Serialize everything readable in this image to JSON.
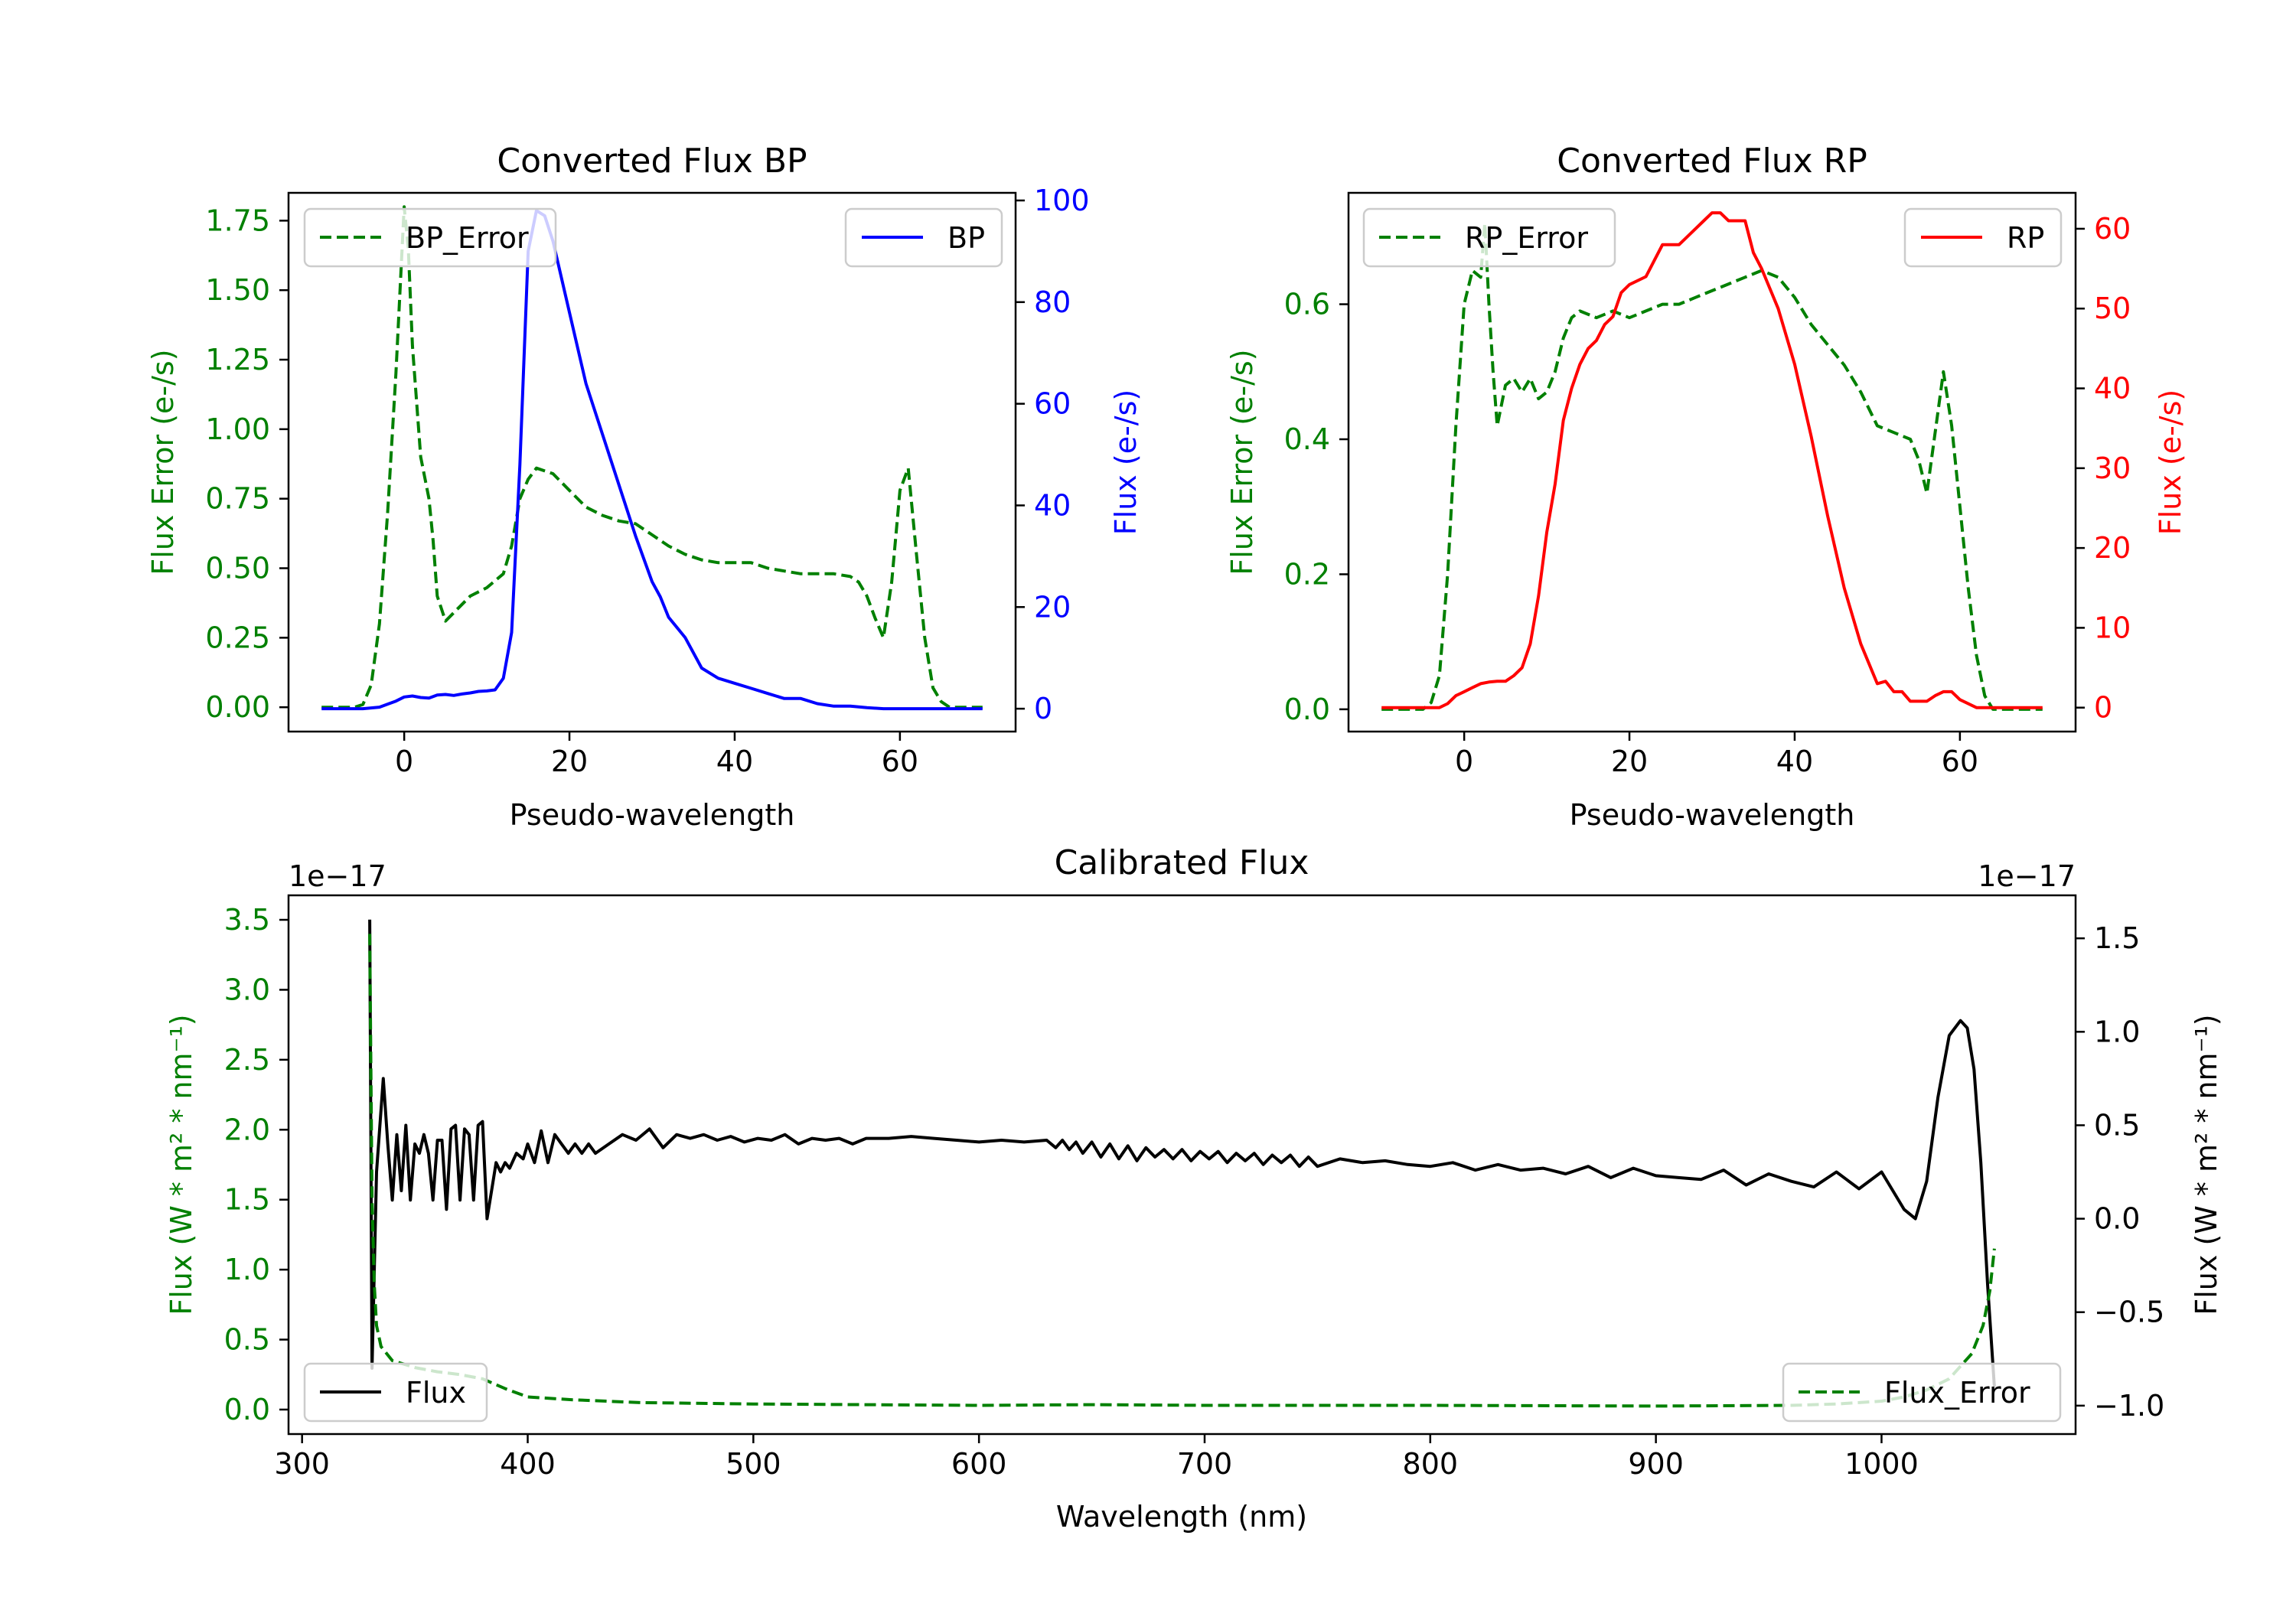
{
  "colors": {
    "error": "#008000",
    "bp": "#0000ff",
    "rp": "#ff0000",
    "flux": "#000000",
    "axis": "#000000",
    "background": "#ffffff"
  },
  "chart_data": [
    {
      "id": "bp",
      "type": "line",
      "title": "Converted Flux BP",
      "xlabel": "Pseudo-wavelength",
      "ylabel_left": "Flux Error (e-/s)",
      "ylabel_right": "Flux (e-/s)",
      "xlim": [
        -14,
        74
      ],
      "ylim_left": [
        -0.0875,
        1.85
      ],
      "ylim_right": [
        -4.5,
        101.5
      ],
      "xticks": [
        0,
        20,
        40,
        60
      ],
      "xtick_labels": [
        "0",
        "20",
        "40",
        "60"
      ],
      "yticks_left": [
        0,
        0.25,
        0.5,
        0.75,
        1.0,
        1.25,
        1.5,
        1.75
      ],
      "ytick_labels_left": [
        "0.00",
        "0.25",
        "0.50",
        "0.75",
        "1.00",
        "1.25",
        "1.50",
        "1.75"
      ],
      "yticks_right": [
        0,
        20,
        40,
        60,
        80,
        100
      ],
      "ytick_labels_right": [
        "0",
        "20",
        "40",
        "60",
        "80",
        "100"
      ],
      "legend_left": {
        "label": "BP_Error",
        "position": "upper-left"
      },
      "legend_right": {
        "label": "BP",
        "position": "upper-right"
      },
      "series": [
        {
          "name": "BP_Error",
          "axis": "left",
          "style": "dashed",
          "color_key": "error",
          "x": [
            -10,
            -6,
            -5,
            -4,
            -3,
            -2,
            -1,
            0,
            0.5,
            1,
            2,
            3,
            3.5,
            4,
            5,
            6,
            8,
            10,
            12,
            13,
            14,
            15,
            16,
            18,
            20,
            22,
            24,
            26,
            28,
            30,
            32,
            34,
            36,
            38,
            40,
            42,
            44,
            46,
            48,
            50,
            52,
            54,
            55,
            56,
            57,
            58,
            59,
            60,
            61,
            62,
            63,
            64,
            65,
            66,
            70
          ],
          "y": [
            0,
            0,
            0.01,
            0.08,
            0.3,
            0.7,
            1.2,
            1.8,
            1.65,
            1.3,
            0.9,
            0.75,
            0.6,
            0.4,
            0.31,
            0.34,
            0.4,
            0.43,
            0.48,
            0.58,
            0.75,
            0.82,
            0.86,
            0.84,
            0.78,
            0.72,
            0.69,
            0.67,
            0.66,
            0.62,
            0.58,
            0.55,
            0.53,
            0.52,
            0.52,
            0.52,
            0.5,
            0.49,
            0.48,
            0.48,
            0.48,
            0.47,
            0.45,
            0.4,
            0.32,
            0.25,
            0.45,
            0.78,
            0.86,
            0.55,
            0.25,
            0.07,
            0.02,
            0,
            0
          ]
        },
        {
          "name": "BP",
          "axis": "right",
          "style": "solid",
          "color_key": "bp",
          "x": [
            -10,
            -5,
            -3,
            -1,
            0,
            1,
            2,
            3,
            4,
            5,
            6,
            7,
            8,
            9,
            10,
            11,
            12,
            13,
            14,
            15,
            16,
            17,
            18,
            20,
            22,
            24,
            26,
            28,
            30,
            31,
            32,
            34,
            36,
            38,
            40,
            42,
            44,
            46,
            48,
            50,
            52,
            54,
            56,
            58,
            60,
            62,
            64,
            66,
            70
          ],
          "y": [
            0,
            0,
            0.3,
            1.5,
            2.3,
            2.5,
            2.2,
            2.1,
            2.7,
            2.8,
            2.6,
            2.9,
            3.1,
            3.4,
            3.5,
            3.7,
            6,
            15,
            48,
            90,
            98,
            97,
            92,
            78,
            64,
            54,
            44,
            34,
            25,
            22,
            18,
            14,
            8,
            6,
            5,
            4,
            3,
            2,
            2,
            1,
            0.5,
            0.5,
            0.2,
            0,
            0,
            0,
            0,
            0,
            0
          ]
        }
      ]
    },
    {
      "id": "rp",
      "type": "line",
      "title": "Converted Flux RP",
      "xlabel": "Pseudo-wavelength",
      "ylabel_left": "Flux Error (e-/s)",
      "ylabel_right": "Flux (e-/s)",
      "xlim": [
        -14,
        74
      ],
      "ylim_left": [
        -0.033,
        0.765
      ],
      "ylim_right": [
        -3.0,
        64.5
      ],
      "xticks": [
        0,
        20,
        40,
        60
      ],
      "xtick_labels": [
        "0",
        "20",
        "40",
        "60"
      ],
      "yticks_left": [
        0,
        0.2,
        0.4,
        0.6
      ],
      "ytick_labels_left": [
        "0.0",
        "0.2",
        "0.4",
        "0.6"
      ],
      "yticks_right": [
        0,
        10,
        20,
        30,
        40,
        50,
        60
      ],
      "ytick_labels_right": [
        "0",
        "10",
        "20",
        "30",
        "40",
        "50",
        "60"
      ],
      "legend_left": {
        "label": "RP_Error",
        "position": "upper-left"
      },
      "legend_right": {
        "label": "RP",
        "position": "upper-right"
      },
      "series": [
        {
          "name": "RP_Error",
          "axis": "left",
          "style": "dashed",
          "color_key": "error",
          "x": [
            -10,
            -5,
            -4,
            -3,
            -2,
            -1,
            0,
            1,
            2,
            2.5,
            3,
            3.5,
            4,
            5,
            6,
            7,
            8,
            9,
            10,
            11,
            12,
            13,
            14,
            16,
            18,
            20,
            22,
            24,
            26,
            28,
            30,
            32,
            34,
            36,
            38,
            40,
            42,
            44,
            46,
            48,
            50,
            52,
            54,
            55,
            56,
            57,
            58,
            59,
            60,
            61,
            62,
            63,
            64,
            65,
            70
          ],
          "y": [
            0,
            0,
            0.01,
            0.05,
            0.2,
            0.42,
            0.6,
            0.65,
            0.64,
            0.72,
            0.6,
            0.5,
            0.42,
            0.48,
            0.49,
            0.47,
            0.49,
            0.46,
            0.47,
            0.5,
            0.55,
            0.58,
            0.59,
            0.58,
            0.59,
            0.58,
            0.59,
            0.6,
            0.6,
            0.61,
            0.62,
            0.63,
            0.64,
            0.65,
            0.64,
            0.61,
            0.57,
            0.54,
            0.51,
            0.47,
            0.42,
            0.41,
            0.4,
            0.37,
            0.32,
            0.41,
            0.5,
            0.42,
            0.3,
            0.18,
            0.08,
            0.02,
            0,
            0,
            0
          ]
        },
        {
          "name": "RP",
          "axis": "right",
          "style": "solid",
          "color_key": "rp",
          "x": [
            -10,
            -5,
            -3,
            -2,
            -1,
            0,
            1,
            2,
            3,
            4,
            5,
            6,
            7,
            8,
            9,
            10,
            11,
            12,
            13,
            14,
            15,
            16,
            17,
            18,
            19,
            20,
            22,
            24,
            26,
            28,
            29,
            30,
            31,
            32,
            33,
            34,
            35,
            36,
            38,
            40,
            42,
            44,
            46,
            48,
            50,
            51,
            52,
            53,
            54,
            55,
            56,
            57,
            58,
            59,
            60,
            62,
            64,
            66,
            70
          ],
          "y": [
            0,
            0,
            0,
            0.5,
            1.5,
            2,
            2.5,
            3,
            3.2,
            3.3,
            3.3,
            4,
            5,
            8,
            14,
            22,
            28,
            36,
            40,
            43,
            45,
            46,
            48,
            49,
            52,
            53,
            54,
            58,
            58,
            60,
            61,
            62,
            62,
            61,
            61,
            61,
            57,
            55,
            50,
            43,
            34,
            24,
            15,
            8,
            3,
            3.3,
            2,
            2,
            0.8,
            0.8,
            0.8,
            1.5,
            2,
            2,
            1,
            0,
            0,
            0,
            0
          ]
        }
      ]
    },
    {
      "id": "calibrated",
      "type": "line",
      "title": "Calibrated Flux",
      "xlabel": "Wavelength (nm)",
      "ylabel_left": "Flux (W * m² * nm⁻¹)",
      "ylabel_right": "Flux (W * m² * nm⁻¹)",
      "scale_left": "1e−17",
      "scale_right": "1e−17",
      "xlim": [
        294,
        1086
      ],
      "ylim_left": [
        -0.175,
        3.675
      ],
      "ylim_right": [
        -1.152,
        1.73
      ],
      "xticks": [
        300,
        400,
        500,
        600,
        700,
        800,
        900,
        1000
      ],
      "xtick_labels": [
        "300",
        "400",
        "500",
        "600",
        "700",
        "800",
        "900",
        "1000"
      ],
      "yticks_left": [
        0,
        0.5,
        1.0,
        1.5,
        2.0,
        2.5,
        3.0,
        3.5
      ],
      "ytick_labels_left": [
        "0.0",
        "0.5",
        "1.0",
        "1.5",
        "2.0",
        "2.5",
        "3.0",
        "3.5"
      ],
      "yticks_right": [
        -1.0,
        -0.5,
        0.0,
        0.5,
        1.0,
        1.5
      ],
      "ytick_labels_right": [
        "−1.0",
        "−0.5",
        "0.0",
        "0.5",
        "1.0",
        "1.5"
      ],
      "legend_left": {
        "label": "Flux",
        "position": "lower-left"
      },
      "legend_right": {
        "label": "Flux_Error",
        "position": "lower-right"
      },
      "series": [
        {
          "name": "Flux",
          "axis": "right",
          "style": "solid",
          "color_key": "flux",
          "x": [
            330,
            331,
            333,
            336,
            338,
            340,
            342,
            344,
            346,
            348,
            350,
            352,
            354,
            356,
            358,
            360,
            362,
            364,
            366,
            368,
            370,
            372,
            374,
            376,
            378,
            380,
            382,
            384,
            386,
            388,
            390,
            392,
            395,
            398,
            400,
            403,
            406,
            409,
            412,
            415,
            418,
            421,
            424,
            427,
            430,
            436,
            442,
            448,
            454,
            460,
            466,
            472,
            478,
            484,
            490,
            496,
            502,
            508,
            514,
            520,
            526,
            532,
            538,
            544,
            550,
            560,
            570,
            580,
            590,
            600,
            610,
            620,
            630,
            634,
            637,
            640,
            643,
            646,
            650,
            654,
            658,
            662,
            666,
            670,
            674,
            678,
            682,
            686,
            690,
            694,
            698,
            702,
            706,
            710,
            714,
            718,
            722,
            726,
            730,
            734,
            738,
            742,
            746,
            750,
            760,
            770,
            780,
            790,
            800,
            810,
            820,
            830,
            840,
            850,
            860,
            870,
            880,
            890,
            900,
            910,
            920,
            930,
            940,
            950,
            960,
            970,
            980,
            990,
            1000,
            1010,
            1015,
            1020,
            1025,
            1030,
            1035,
            1038,
            1041,
            1044,
            1047,
            1050
          ],
          "y": [
            1.6,
            -0.8,
            0.25,
            0.75,
            0.4,
            0.1,
            0.45,
            0.15,
            0.5,
            0.1,
            0.4,
            0.35,
            0.45,
            0.35,
            0.1,
            0.42,
            0.42,
            0.05,
            0.48,
            0.5,
            0.1,
            0.48,
            0.45,
            0.1,
            0.5,
            0.52,
            0,
            0.15,
            0.3,
            0.25,
            0.3,
            0.27,
            0.35,
            0.32,
            0.4,
            0.3,
            0.47,
            0.3,
            0.45,
            0.4,
            0.35,
            0.4,
            0.35,
            0.4,
            0.35,
            0.4,
            0.45,
            0.42,
            0.48,
            0.38,
            0.45,
            0.43,
            0.45,
            0.42,
            0.44,
            0.41,
            0.43,
            0.42,
            0.45,
            0.4,
            0.43,
            0.42,
            0.43,
            0.4,
            0.43,
            0.43,
            0.44,
            0.43,
            0.42,
            0.41,
            0.42,
            0.41,
            0.42,
            0.38,
            0.42,
            0.37,
            0.41,
            0.35,
            0.41,
            0.33,
            0.4,
            0.32,
            0.39,
            0.31,
            0.38,
            0.33,
            0.37,
            0.32,
            0.37,
            0.31,
            0.36,
            0.32,
            0.36,
            0.3,
            0.35,
            0.31,
            0.35,
            0.29,
            0.34,
            0.3,
            0.34,
            0.28,
            0.33,
            0.28,
            0.32,
            0.3,
            0.31,
            0.29,
            0.28,
            0.3,
            0.26,
            0.29,
            0.26,
            0.27,
            0.24,
            0.28,
            0.22,
            0.27,
            0.23,
            0.22,
            0.21,
            0.26,
            0.18,
            0.24,
            0.2,
            0.17,
            0.25,
            0.16,
            0.25,
            0.05,
            0.0,
            0.2,
            0.65,
            0.98,
            1.06,
            1.02,
            0.8,
            0.3,
            -0.35,
            -0.9
          ]
        },
        {
          "name": "Flux_Error",
          "axis": "left",
          "style": "dashed",
          "color_key": "error",
          "x": [
            330,
            331,
            332,
            333,
            335,
            340,
            350,
            360,
            370,
            380,
            390,
            400,
            420,
            450,
            500,
            550,
            600,
            650,
            700,
            800,
            900,
            960,
            980,
            1000,
            1010,
            1020,
            1030,
            1040,
            1045,
            1048,
            1050
          ],
          "y": [
            3.4,
            1.5,
            0.9,
            0.6,
            0.45,
            0.35,
            0.3,
            0.27,
            0.25,
            0.22,
            0.15,
            0.09,
            0.07,
            0.05,
            0.04,
            0.035,
            0.03,
            0.035,
            0.03,
            0.03,
            0.025,
            0.03,
            0.04,
            0.06,
            0.09,
            0.14,
            0.22,
            0.4,
            0.6,
            0.85,
            1.15
          ]
        }
      ]
    }
  ]
}
